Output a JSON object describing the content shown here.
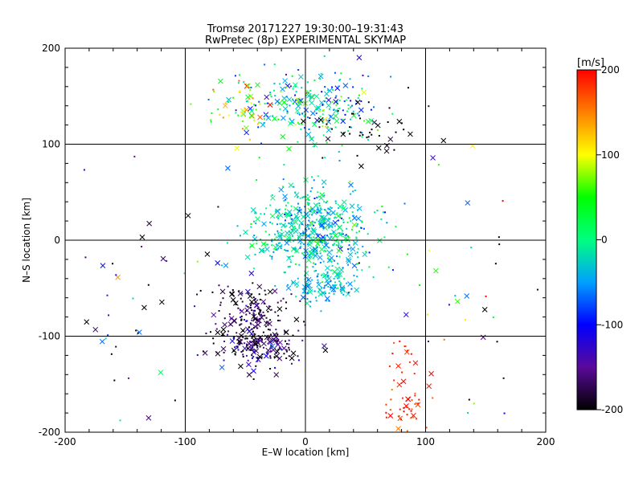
{
  "chart_data": {
    "type": "scatter",
    "title_line1": "Tromsø 20171227 19:30:00–19:31:43",
    "title_line2": "RwPretec (8p) EXPERIMENTAL SKYMAP",
    "xlabel": "E–W location [km]",
    "ylabel": "N–S location [km]",
    "xlim": [
      -200,
      200
    ],
    "ylim": [
      -200,
      200
    ],
    "xticks": [
      -200,
      -100,
      0,
      100,
      200
    ],
    "yticks": [
      -200,
      -100,
      0,
      100,
      200
    ],
    "grid": true,
    "colorbar": {
      "unit_label": "[m/s]",
      "range": [
        -200,
        200
      ],
      "ticks": [
        200,
        100,
        0,
        -100,
        -200
      ],
      "colormap": [
        "#000000",
        "#5a0a9a",
        "#0000ff",
        "#00a0ff",
        "#00ff80",
        "#00ff00",
        "#ffff00",
        "#ff8000",
        "#ff0000"
      ]
    },
    "marker_legend": {
      "small_marker": "small dot markers",
      "large_marker": "x markers"
    },
    "clusters": [
      {
        "center": [
          5,
          10
        ],
        "spread": [
          25,
          22
        ],
        "count": 520,
        "velocity_mean": -20,
        "velocity_spread": 35
      },
      {
        "center": [
          15,
          -45
        ],
        "spread": [
          15,
          10
        ],
        "count": 120,
        "velocity_mean": -30,
        "velocity_spread": 25
      },
      {
        "center": [
          10,
          140
        ],
        "spread": [
          25,
          20
        ],
        "count": 240,
        "velocity_mean": -20,
        "velocity_spread": 60
      },
      {
        "center": [
          -55,
          135
        ],
        "spread": [
          15,
          15
        ],
        "count": 60,
        "velocity_mean": 80,
        "velocity_spread": 60
      },
      {
        "center": [
          -45,
          -75
        ],
        "spread": [
          15,
          15
        ],
        "count": 140,
        "velocity_mean": -180,
        "velocity_spread": 30
      },
      {
        "center": [
          -40,
          -110
        ],
        "spread": [
          20,
          12
        ],
        "count": 190,
        "velocity_mean": -170,
        "velocity_spread": 40
      },
      {
        "center": [
          80,
          -175
        ],
        "spread": [
          10,
          12
        ],
        "count": 40,
        "velocity_mean": 185,
        "velocity_spread": 20
      },
      {
        "center": [
          85,
          -120
        ],
        "spread": [
          8,
          12
        ],
        "count": 15,
        "velocity_mean": 190,
        "velocity_spread": 15
      },
      {
        "center": [
          -130,
          -60
        ],
        "spread": [
          35,
          60
        ],
        "count": 45,
        "velocity_mean": -150,
        "velocity_spread": 100
      },
      {
        "center": [
          130,
          -70
        ],
        "spread": [
          35,
          60
        ],
        "count": 40,
        "velocity_mean": 40,
        "velocity_spread": 160
      },
      {
        "center": [
          50,
          120
        ],
        "spread": [
          30,
          15
        ],
        "count": 45,
        "velocity_mean": -200,
        "velocity_spread": 10
      }
    ]
  }
}
